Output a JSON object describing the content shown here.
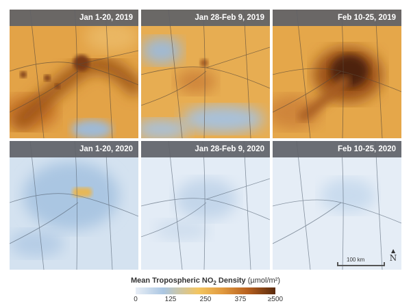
{
  "panels": [
    {
      "label": "Jan 1-20, 2019"
    },
    {
      "label": "Jan 28-Feb 9, 2019"
    },
    {
      "label": "Feb 10-25, 2019"
    },
    {
      "label": "Jan 1-20, 2020"
    },
    {
      "label": "Jan 28-Feb 9, 2020"
    },
    {
      "label": "Feb 10-25, 2020"
    }
  ],
  "legend": {
    "title_main": "Mean Tropospheric NO",
    "title_sub": "2",
    "title_rest": " Density ",
    "unit": "(µmol/m²)",
    "ticks": [
      "0",
      "125",
      "250",
      "375",
      "≥500"
    ]
  },
  "scale": {
    "label": "100 km"
  },
  "north": {
    "label": "N"
  },
  "colors": {
    "low": "#e8eef6",
    "mid": "#f3c560",
    "high": "#5a2a0d",
    "label_bar": "#5f6268"
  }
}
